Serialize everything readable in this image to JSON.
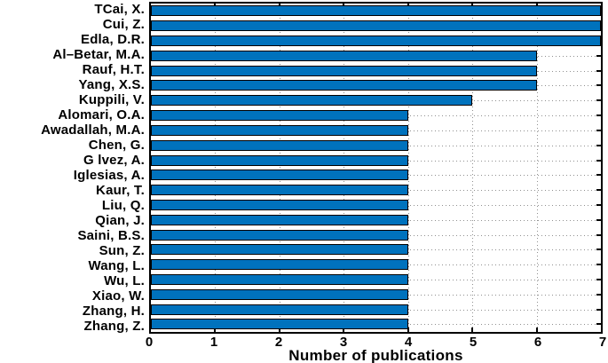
{
  "chart_data": {
    "type": "bar",
    "orientation": "horizontal",
    "title": "",
    "xlabel": "Number of publications",
    "ylabel": "",
    "xlim": [
      0,
      7
    ],
    "xticks": [
      0,
      1,
      2,
      3,
      4,
      5,
      6,
      7
    ],
    "grid": true,
    "legend": null,
    "bar_color": "#0072BD",
    "bar_edge_color": "#000000",
    "categories": [
      "TCai, X.",
      "Cui, Z.",
      "Edla, D.R.",
      "Al–Betar, M.A.",
      "Rauf, H.T.",
      "Yang, X.S.",
      "Kuppili, V.",
      "Alomari, O.A.",
      "Awadallah, M.A.",
      "Chen, G.",
      "G lvez, A.",
      "Iglesias, A.",
      "Kaur, T.",
      "Liu, Q.",
      "Qian, J.",
      "Saini, B.S.",
      "Sun, Z.",
      "Wang, L.",
      "Wu, L.",
      "Xiao, W.",
      "Zhang, H.",
      "Zhang, Z."
    ],
    "values": [
      7,
      7,
      7,
      6,
      6,
      6,
      5,
      4,
      4,
      4,
      4,
      4,
      4,
      4,
      4,
      4,
      4,
      4,
      4,
      4,
      4,
      4
    ]
  }
}
